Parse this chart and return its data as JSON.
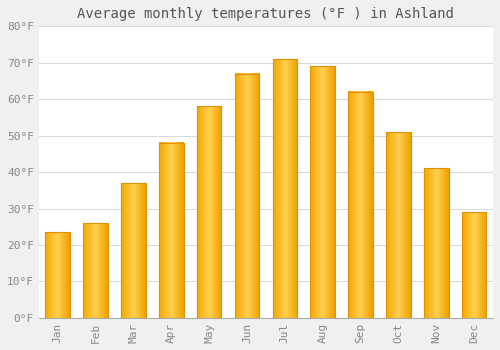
{
  "title": "Average monthly temperatures (°F ) in Ashland",
  "months": [
    "Jan",
    "Feb",
    "Mar",
    "Apr",
    "May",
    "Jun",
    "Jul",
    "Aug",
    "Sep",
    "Oct",
    "Nov",
    "Dec"
  ],
  "values": [
    23.5,
    26.0,
    37.0,
    48.0,
    58.0,
    67.0,
    71.0,
    69.0,
    62.0,
    51.0,
    41.0,
    29.0
  ],
  "bar_color_left": "#F5A800",
  "bar_color_mid": "#FFD050",
  "bar_color_right": "#F0A000",
  "background_color": "#f0f0f0",
  "plot_bg_color": "#ffffff",
  "grid_color": "#d8d8d8",
  "ylim": [
    0,
    80
  ],
  "yticks": [
    0,
    10,
    20,
    30,
    40,
    50,
    60,
    70,
    80
  ],
  "ytick_labels": [
    "0°F",
    "10°F",
    "20°F",
    "30°F",
    "40°F",
    "50°F",
    "60°F",
    "70°F",
    "80°F"
  ],
  "title_fontsize": 10,
  "tick_fontsize": 8,
  "tick_color": "#888888",
  "bar_width": 0.65
}
